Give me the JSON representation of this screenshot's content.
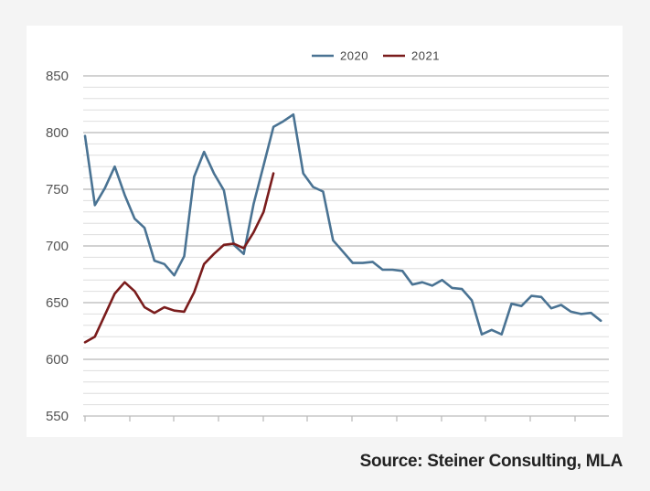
{
  "chart_data": {
    "type": "line",
    "title": "",
    "xlabel": "",
    "ylabel": "",
    "ylim": [
      550,
      850
    ],
    "yticks": [
      550,
      600,
      650,
      700,
      750,
      800,
      850
    ],
    "grid": true,
    "legend_position": "top-center",
    "x_points": 53,
    "series": [
      {
        "name": "2020",
        "color": "#4a7393",
        "values": [
          797,
          736,
          751,
          770,
          745,
          724,
          716,
          687,
          684,
          674,
          691,
          761,
          783,
          764,
          749,
          701,
          693,
          737,
          771,
          805,
          810,
          816,
          764,
          752,
          748,
          705,
          695,
          685,
          685,
          686,
          679,
          679,
          678,
          666,
          668,
          665,
          670,
          663,
          662,
          652,
          622,
          626,
          622,
          649,
          647,
          656,
          655,
          645,
          648,
          642,
          640,
          641,
          634
        ]
      },
      {
        "name": "2021",
        "color": "#7a1c1c",
        "values": [
          615,
          620,
          639,
          658,
          668,
          660,
          646,
          641,
          646,
          643,
          642,
          659,
          684,
          693,
          701,
          702,
          698,
          712,
          730,
          764
        ]
      }
    ]
  },
  "source_text": "Source: Steiner Consulting, MLA"
}
